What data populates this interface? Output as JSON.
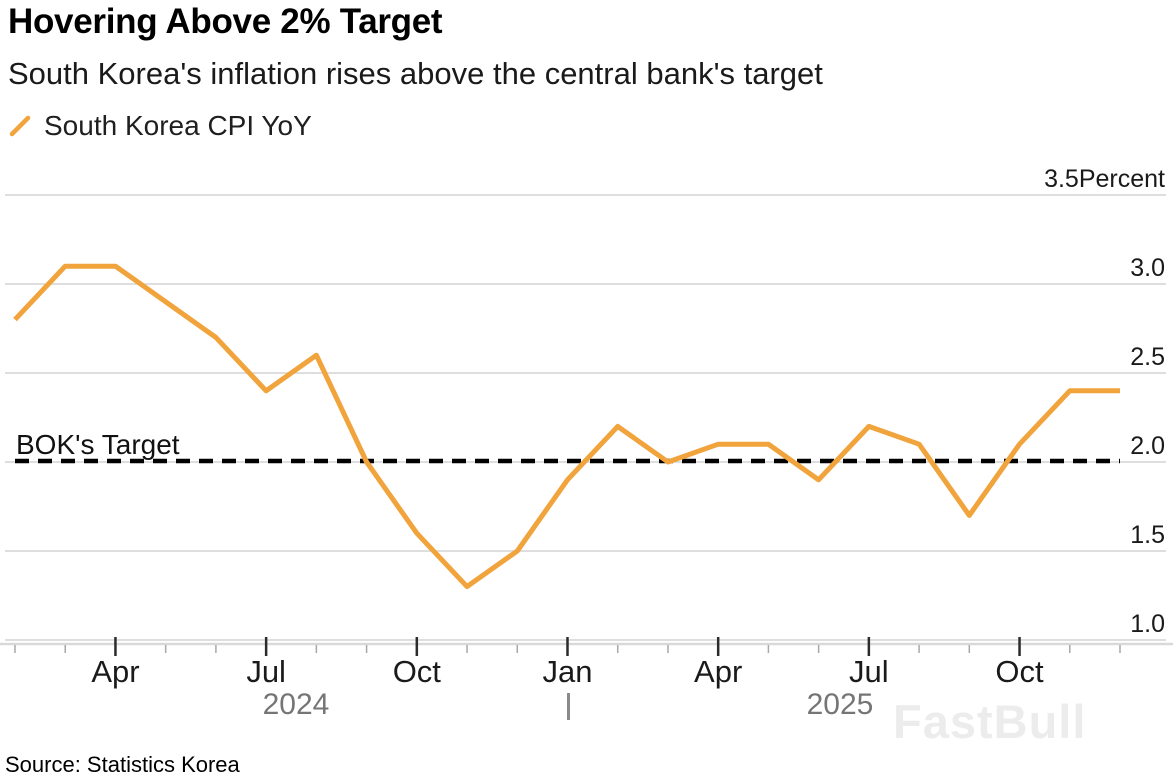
{
  "header": {
    "title": "Hovering Above 2% Target",
    "subtitle": "South Korea's inflation rises above the central bank's target"
  },
  "legend": {
    "label": "South Korea CPI YoY"
  },
  "footer": {
    "source": "Source: Statistics Korea"
  },
  "watermark": {
    "text": "FastBull"
  },
  "chart_data": {
    "type": "line",
    "title": "Hovering Above 2% Target",
    "subtitle": "South Korea's inflation rises above the central bank's target",
    "series_name": "South Korea CPI YoY",
    "x_months": [
      "Feb 2024",
      "Mar 2024",
      "Apr 2024",
      "May 2024",
      "Jun 2024",
      "Jul 2024",
      "Aug 2024",
      "Sep 2024",
      "Oct 2024",
      "Nov 2024",
      "Dec 2024",
      "Jan 2025",
      "Feb 2025",
      "Mar 2025",
      "Apr 2025",
      "May 2025",
      "Jun 2025",
      "Jul 2025",
      "Aug 2025",
      "Sep 2025",
      "Oct 2025",
      "Nov 2025",
      "Dec 2025"
    ],
    "values": [
      2.8,
      3.1,
      3.1,
      2.9,
      2.7,
      2.4,
      2.6,
      2.0,
      1.6,
      1.3,
      1.5,
      1.9,
      2.2,
      2.0,
      2.1,
      2.1,
      1.9,
      2.2,
      2.1,
      1.7,
      2.1,
      2.4,
      2.4
    ],
    "x_axis": {
      "major_indices": [
        2,
        5,
        8,
        11,
        14,
        17,
        20
      ],
      "major_labels": [
        "Apr",
        "Jul",
        "Oct",
        "Jan",
        "Apr",
        "Jul",
        "Oct"
      ],
      "years": [
        "2024",
        "2025"
      ],
      "divider": "|"
    },
    "y_axis": {
      "tick_values": [
        3.5,
        3.0,
        2.5,
        2.0,
        1.5,
        1.0
      ],
      "tick_labels": [
        "3.5Percent",
        "3.0",
        "2.5",
        "2.0",
        "1.5",
        "1.0"
      ],
      "unit": "Percent",
      "ylim": [
        1.0,
        3.5
      ],
      "grid": "horizontal only",
      "side": "right"
    },
    "target_line": {
      "label": "BOK's Target",
      "value": 2.0,
      "style": "dashed",
      "color": "#000000"
    },
    "colors": {
      "series": "#F1A33C",
      "grid": "#d4d4d4",
      "axis_line": "#d9d9d9",
      "tick_major": "#2b2b2b",
      "tick_minor": "#a8a8a8",
      "axis_text": "#1a1a1a"
    },
    "legend_position": "top-left"
  }
}
